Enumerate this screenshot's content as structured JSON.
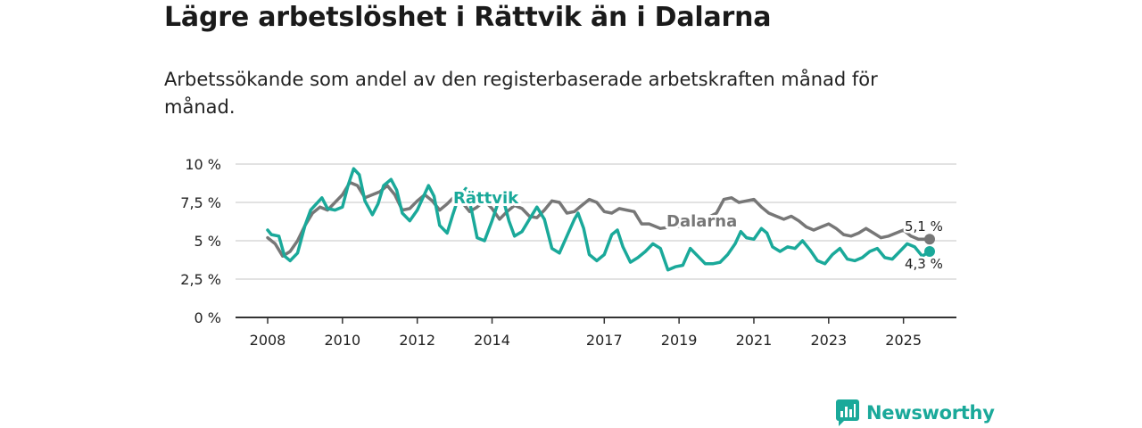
{
  "header": {
    "title": "Lägre arbetslöshet i Rättvik än i Dalarna",
    "subtitle": "Arbetssökande som andel av den registerbaserade arbetskraften månad för månad."
  },
  "brand": {
    "name": "Newsworthy",
    "color": "#1aa99a",
    "icon": "newsworthy-logo-icon"
  },
  "colors": {
    "rattvik": "#1aa99a",
    "dalarna": "#777777",
    "grid": "#d9d9d9",
    "axis": "#333333"
  },
  "chart_data": {
    "type": "line",
    "title": "Lägre arbetslöshet i Rättvik än i Dalarna",
    "xlabel": "",
    "ylabel": "",
    "xlim": [
      2008,
      2025.7
    ],
    "ylim": [
      0,
      10
    ],
    "x_ticks": [
      {
        "value": 2008,
        "label": "2008"
      },
      {
        "value": 2010,
        "label": "2010"
      },
      {
        "value": 2012,
        "label": "2012"
      },
      {
        "value": 2014,
        "label": "2014"
      },
      {
        "value": 2017,
        "label": "2017"
      },
      {
        "value": 2019,
        "label": "2019"
      },
      {
        "value": 2021,
        "label": "2021"
      },
      {
        "value": 2023,
        "label": "2023"
      },
      {
        "value": 2025,
        "label": "2025"
      }
    ],
    "y_ticks": [
      {
        "value": 0,
        "label": "0 %"
      },
      {
        "value": 2.5,
        "label": "2,5 %"
      },
      {
        "value": 5,
        "label": "5 %"
      },
      {
        "value": 7.5,
        "label": "7,5 %"
      },
      {
        "value": 10,
        "label": "10 %"
      }
    ],
    "series": [
      {
        "name": "Dalarna",
        "label": "Dalarna",
        "end_label": "5,1 %",
        "end_value": 5.1,
        "color": "#777777",
        "points": [
          [
            2008.0,
            5.2
          ],
          [
            2008.2,
            4.8
          ],
          [
            2008.4,
            4.0
          ],
          [
            2008.6,
            4.3
          ],
          [
            2008.8,
            5.0
          ],
          [
            2009.0,
            6.0
          ],
          [
            2009.2,
            6.8
          ],
          [
            2009.4,
            7.2
          ],
          [
            2009.6,
            7.0
          ],
          [
            2009.8,
            7.5
          ],
          [
            2010.0,
            8.0
          ],
          [
            2010.2,
            8.8
          ],
          [
            2010.4,
            8.6
          ],
          [
            2010.6,
            7.8
          ],
          [
            2010.8,
            8.0
          ],
          [
            2011.0,
            8.2
          ],
          [
            2011.2,
            8.6
          ],
          [
            2011.4,
            8.0
          ],
          [
            2011.6,
            7.0
          ],
          [
            2011.8,
            7.1
          ],
          [
            2012.0,
            7.6
          ],
          [
            2012.2,
            8.0
          ],
          [
            2012.4,
            7.6
          ],
          [
            2012.6,
            7.0
          ],
          [
            2012.8,
            7.4
          ],
          [
            2013.0,
            7.9
          ],
          [
            2013.2,
            7.5
          ],
          [
            2013.4,
            6.9
          ],
          [
            2013.6,
            7.2
          ],
          [
            2013.8,
            7.6
          ],
          [
            2014.0,
            7.1
          ],
          [
            2014.2,
            6.4
          ],
          [
            2014.4,
            6.9
          ],
          [
            2014.6,
            7.3
          ],
          [
            2014.8,
            7.1
          ],
          [
            2015.0,
            6.6
          ],
          [
            2015.2,
            6.5
          ],
          [
            2015.4,
            7.0
          ],
          [
            2015.6,
            7.6
          ],
          [
            2015.8,
            7.5
          ],
          [
            2016.0,
            6.8
          ],
          [
            2016.2,
            6.9
          ],
          [
            2016.4,
            7.3
          ],
          [
            2016.6,
            7.7
          ],
          [
            2016.8,
            7.5
          ],
          [
            2017.0,
            6.9
          ],
          [
            2017.2,
            6.8
          ],
          [
            2017.4,
            7.1
          ],
          [
            2017.6,
            7.0
          ],
          [
            2017.8,
            6.9
          ],
          [
            2018.0,
            6.1
          ],
          [
            2018.2,
            6.1
          ],
          [
            2018.5,
            5.8
          ],
          [
            2018.8,
            5.9
          ],
          [
            2019.2,
            6.0
          ],
          [
            2019.6,
            6.3
          ],
          [
            2020.0,
            6.8
          ],
          [
            2020.2,
            7.7
          ],
          [
            2020.4,
            7.8
          ],
          [
            2020.6,
            7.5
          ],
          [
            2020.8,
            7.6
          ],
          [
            2021.0,
            7.7
          ],
          [
            2021.2,
            7.2
          ],
          [
            2021.4,
            6.8
          ],
          [
            2021.6,
            6.6
          ],
          [
            2021.8,
            6.4
          ],
          [
            2022.0,
            6.6
          ],
          [
            2022.2,
            6.3
          ],
          [
            2022.4,
            5.9
          ],
          [
            2022.6,
            5.7
          ],
          [
            2022.8,
            5.9
          ],
          [
            2023.0,
            6.1
          ],
          [
            2023.2,
            5.8
          ],
          [
            2023.4,
            5.4
          ],
          [
            2023.6,
            5.3
          ],
          [
            2023.8,
            5.5
          ],
          [
            2024.0,
            5.8
          ],
          [
            2024.2,
            5.5
          ],
          [
            2024.4,
            5.2
          ],
          [
            2024.6,
            5.3
          ],
          [
            2024.8,
            5.5
          ],
          [
            2025.0,
            5.7
          ],
          [
            2025.2,
            5.3
          ],
          [
            2025.4,
            5.1
          ],
          [
            2025.7,
            5.1
          ]
        ]
      },
      {
        "name": "Rättvik",
        "label": "Rättvik",
        "end_label": "4,3 %",
        "end_value": 4.3,
        "color": "#1aa99a",
        "points": [
          [
            2008.0,
            5.7
          ],
          [
            2008.1,
            5.4
          ],
          [
            2008.3,
            5.3
          ],
          [
            2008.45,
            4.0
          ],
          [
            2008.6,
            3.7
          ],
          [
            2008.8,
            4.2
          ],
          [
            2009.0,
            6.0
          ],
          [
            2009.15,
            7.0
          ],
          [
            2009.3,
            7.4
          ],
          [
            2009.45,
            7.8
          ],
          [
            2009.6,
            7.1
          ],
          [
            2009.8,
            7.0
          ],
          [
            2010.0,
            7.2
          ],
          [
            2010.15,
            8.6
          ],
          [
            2010.3,
            9.7
          ],
          [
            2010.45,
            9.3
          ],
          [
            2010.6,
            7.6
          ],
          [
            2010.8,
            6.7
          ],
          [
            2010.95,
            7.4
          ],
          [
            2011.1,
            8.6
          ],
          [
            2011.3,
            9.0
          ],
          [
            2011.45,
            8.3
          ],
          [
            2011.6,
            6.8
          ],
          [
            2011.8,
            6.3
          ],
          [
            2012.0,
            7.0
          ],
          [
            2012.15,
            7.8
          ],
          [
            2012.3,
            8.6
          ],
          [
            2012.45,
            7.9
          ],
          [
            2012.6,
            6.0
          ],
          [
            2012.8,
            5.5
          ],
          [
            2012.95,
            6.7
          ],
          [
            2013.1,
            7.8
          ],
          [
            2013.3,
            8.4
          ],
          [
            2013.45,
            7.0
          ],
          [
            2013.6,
            5.2
          ],
          [
            2013.8,
            5.0
          ],
          [
            2014.0,
            6.3
          ],
          [
            2014.15,
            7.4
          ],
          [
            2014.3,
            7.7
          ],
          [
            2014.45,
            6.3
          ],
          [
            2014.6,
            5.3
          ],
          [
            2014.8,
            5.6
          ],
          [
            2015.0,
            6.4
          ],
          [
            2015.2,
            7.2
          ],
          [
            2015.4,
            6.4
          ],
          [
            2015.6,
            4.5
          ],
          [
            2015.8,
            4.2
          ],
          [
            2016.0,
            5.3
          ],
          [
            2016.2,
            6.4
          ],
          [
            2016.3,
            6.8
          ],
          [
            2016.45,
            5.8
          ],
          [
            2016.6,
            4.1
          ],
          [
            2016.8,
            3.7
          ],
          [
            2017.0,
            4.1
          ],
          [
            2017.2,
            5.4
          ],
          [
            2017.35,
            5.7
          ],
          [
            2017.5,
            4.6
          ],
          [
            2017.7,
            3.6
          ],
          [
            2017.9,
            3.9
          ],
          [
            2018.1,
            4.3
          ],
          [
            2018.3,
            4.8
          ],
          [
            2018.5,
            4.5
          ],
          [
            2018.7,
            3.1
          ],
          [
            2018.9,
            3.3
          ],
          [
            2019.1,
            3.4
          ],
          [
            2019.3,
            4.5
          ],
          [
            2019.5,
            4.0
          ],
          [
            2019.7,
            3.5
          ],
          [
            2019.9,
            3.5
          ],
          [
            2020.1,
            3.6
          ],
          [
            2020.3,
            4.1
          ],
          [
            2020.5,
            4.8
          ],
          [
            2020.65,
            5.6
          ],
          [
            2020.8,
            5.2
          ],
          [
            2021.0,
            5.1
          ],
          [
            2021.2,
            5.8
          ],
          [
            2021.35,
            5.5
          ],
          [
            2021.5,
            4.6
          ],
          [
            2021.7,
            4.3
          ],
          [
            2021.9,
            4.6
          ],
          [
            2022.1,
            4.5
          ],
          [
            2022.3,
            5.0
          ],
          [
            2022.5,
            4.4
          ],
          [
            2022.7,
            3.7
          ],
          [
            2022.9,
            3.5
          ],
          [
            2023.1,
            4.1
          ],
          [
            2023.3,
            4.5
          ],
          [
            2023.5,
            3.8
          ],
          [
            2023.7,
            3.7
          ],
          [
            2023.9,
            3.9
          ],
          [
            2024.1,
            4.3
          ],
          [
            2024.3,
            4.5
          ],
          [
            2024.5,
            3.9
          ],
          [
            2024.7,
            3.8
          ],
          [
            2024.9,
            4.3
          ],
          [
            2025.1,
            4.8
          ],
          [
            2025.3,
            4.6
          ],
          [
            2025.5,
            4.0
          ],
          [
            2025.7,
            4.3
          ]
        ]
      }
    ]
  }
}
